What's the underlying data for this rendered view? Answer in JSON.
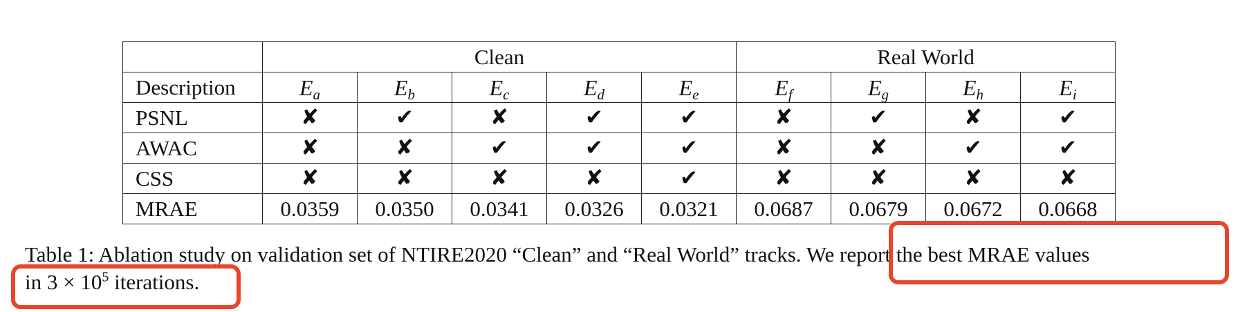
{
  "colors": {
    "highlight": "#e8452c",
    "grid": "#222222",
    "text": "#111111"
  },
  "table": {
    "groups": [
      "Clean",
      "Real World"
    ],
    "header_label": "Description",
    "experiments": [
      {
        "base": "E",
        "sub": "a"
      },
      {
        "base": "E",
        "sub": "b"
      },
      {
        "base": "E",
        "sub": "c"
      },
      {
        "base": "E",
        "sub": "d"
      },
      {
        "base": "E",
        "sub": "e"
      },
      {
        "base": "E",
        "sub": "f"
      },
      {
        "base": "E",
        "sub": "g"
      },
      {
        "base": "E",
        "sub": "h"
      },
      {
        "base": "E",
        "sub": "i"
      }
    ],
    "rows": [
      {
        "label": "PSNL",
        "cells": [
          "✘",
          "✔",
          "✘",
          "✔",
          "✔",
          "✘",
          "✔",
          "✘",
          "✔"
        ]
      },
      {
        "label": "AWAC",
        "cells": [
          "✘",
          "✘",
          "✔",
          "✔",
          "✔",
          "✘",
          "✘",
          "✔",
          "✔"
        ]
      },
      {
        "label": "CSS",
        "cells": [
          "✘",
          "✘",
          "✘",
          "✘",
          "✔",
          "✘",
          "✘",
          "✘",
          "✘"
        ]
      },
      {
        "label": "MRAE",
        "cells": [
          "0.0359",
          "0.0350",
          "0.0341",
          "0.0326",
          "0.0321",
          "0.0687",
          "0.0679",
          "0.0672",
          "0.0668"
        ]
      }
    ]
  },
  "caption": {
    "part1": "Table 1: Ablation study on validation set of NTIRE2020 “Clean” and “Real World” tracks. We report the best MRAE values",
    "line2_pre": "in 3 × 10",
    "line2_sup": "5",
    "line2_post": " iterations."
  }
}
